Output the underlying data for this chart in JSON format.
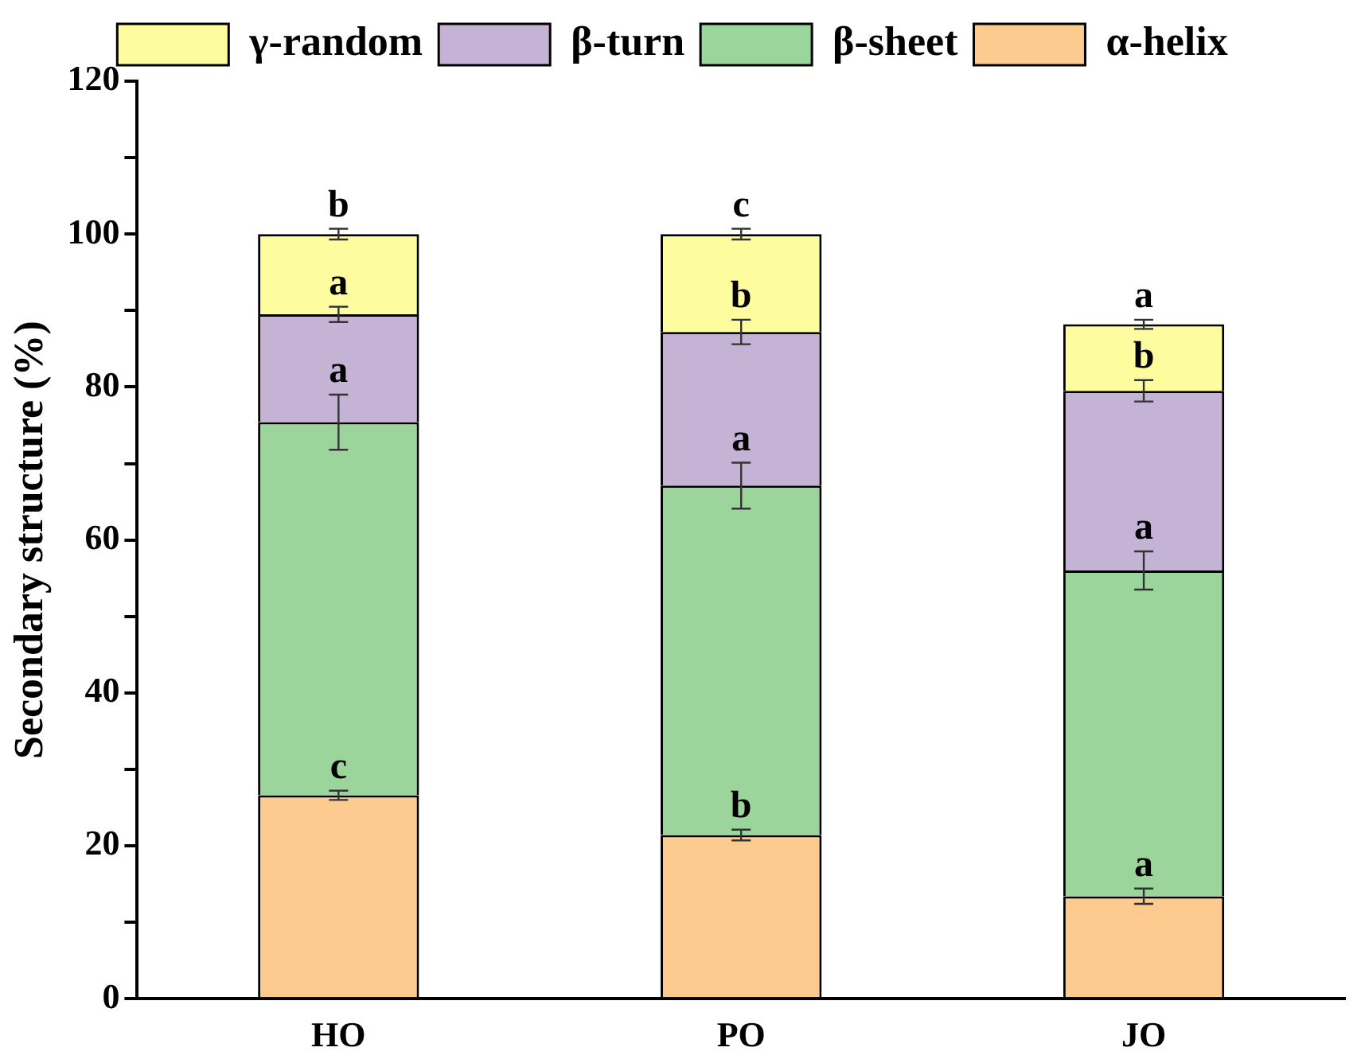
{
  "chart_data": {
    "type": "bar",
    "stacked": true,
    "ylabel": "Secondary structure (%)",
    "categories": [
      "HO",
      "PO",
      "JO"
    ],
    "series": [
      {
        "name": "α-helix",
        "color": "#fdca8f",
        "values": [
          26.6,
          21.4,
          13.4
        ],
        "errors": [
          0.6,
          0.7,
          1.0
        ]
      },
      {
        "name": "β-sheet",
        "color": "#9cd59c",
        "values": [
          48.8,
          45.7,
          42.6
        ],
        "errors": [
          3.6,
          3.0,
          2.5
        ]
      },
      {
        "name": "β-turn",
        "color": "#c5b3d6",
        "values": [
          14.1,
          20.1,
          23.5
        ],
        "errors": [
          1.0,
          1.6,
          1.4
        ]
      },
      {
        "name": "γ-random",
        "color": "#fdfd9f",
        "values": [
          10.5,
          12.8,
          8.7
        ],
        "errors": [
          0.7,
          0.7,
          0.6
        ]
      }
    ],
    "ylim": [
      0,
      120
    ],
    "yticks": [
      0,
      {
        "value": 10,
        "label": null
      },
      20,
      {
        "value": 30,
        "label": null
      },
      40,
      {
        "value": 50,
        "label": null
      },
      60,
      {
        "value": 70,
        "label": null
      },
      80,
      {
        "value": 90,
        "label": null
      },
      100,
      {
        "value": 110,
        "label": null
      },
      120
    ],
    "grid": false,
    "legend": "top",
    "annotations": [
      {
        "text": "c",
        "x": "HO",
        "y": 26.6
      },
      {
        "text": "b",
        "x": "PO",
        "y": 21.4
      },
      {
        "text": "a",
        "x": "JO",
        "y": 13.4
      },
      {
        "text": "a",
        "x": "HO",
        "y": 75.4
      },
      {
        "text": "a",
        "x": "PO",
        "y": 67.1
      },
      {
        "text": "a",
        "x": "JO",
        "y": 56.0
      },
      {
        "text": "a",
        "x": "HO",
        "y": 89.5
      },
      {
        "text": "b",
        "x": "PO",
        "y": 87.2
      },
      {
        "text": "b",
        "x": "JO",
        "y": 79.5
      },
      {
        "text": "b",
        "x": "HO",
        "y": 100.0
      },
      {
        "text": "c",
        "x": "PO",
        "y": 100.0
      },
      {
        "text": "a",
        "x": "JO",
        "y": 88.2
      }
    ]
  }
}
